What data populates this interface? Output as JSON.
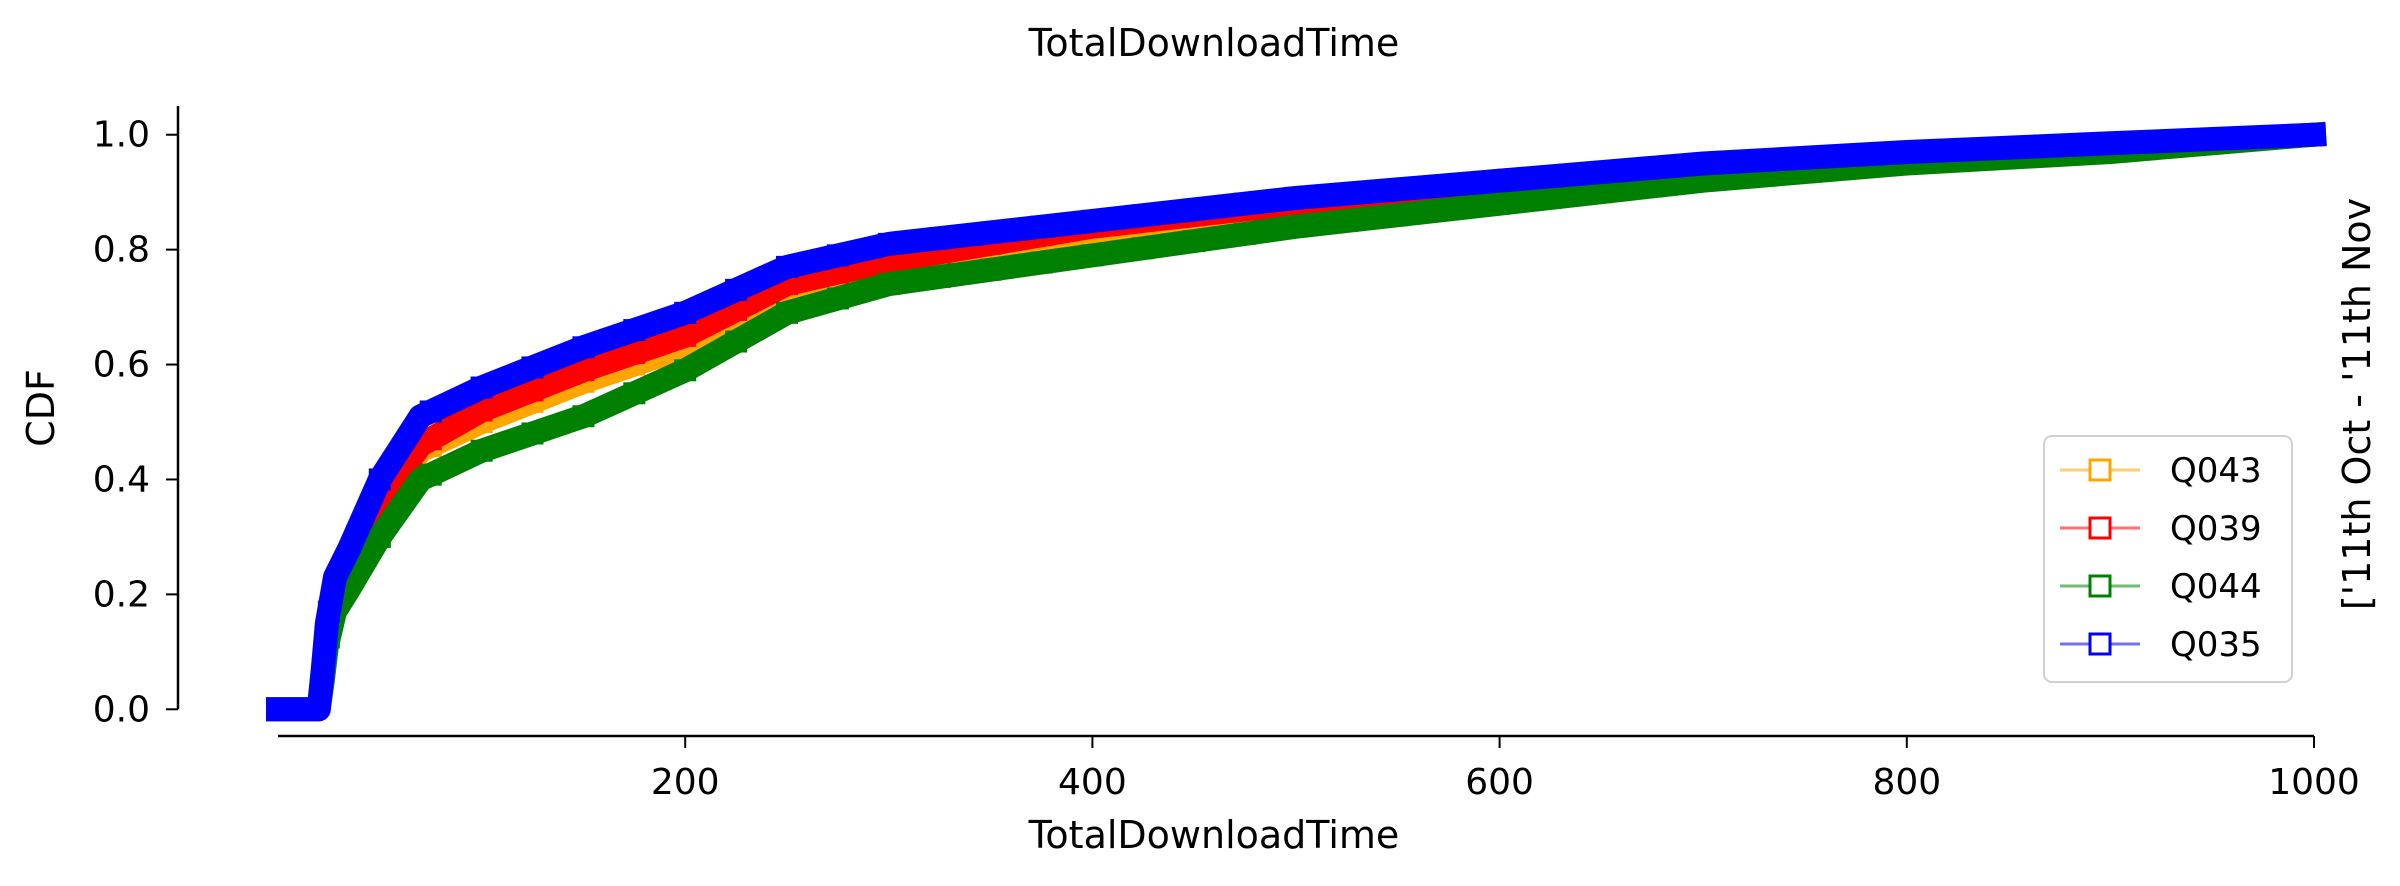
{
  "chart_data": {
    "type": "line",
    "title": "TotalDownloadTime",
    "xlabel": "TotalDownloadTime",
    "ylabel": "CDF",
    "right_label": "['11th Oct - '11th Nov",
    "xlim": [
      0,
      1000
    ],
    "ylim": [
      -0.05,
      1.05
    ],
    "xticks": [
      200,
      400,
      600,
      800,
      1000
    ],
    "yticks": [
      0.0,
      0.2,
      0.4,
      0.6,
      0.8,
      1.0
    ],
    "xtick_labels": [
      "200",
      "400",
      "600",
      "800",
      "1000"
    ],
    "ytick_labels": [
      "0.0",
      "0.2",
      "0.4",
      "0.6",
      "0.8",
      "1.0"
    ],
    "grid": false,
    "legend_position": "lower-right",
    "marker": "square",
    "series": [
      {
        "name": "Q043",
        "color": "#ffa500",
        "x": [
          0,
          20,
          22,
          24,
          28,
          35,
          50,
          70,
          100,
          150,
          200,
          250,
          300,
          400,
          500,
          600,
          700,
          800,
          900,
          1000
        ],
        "y": [
          0,
          0,
          0.05,
          0.12,
          0.2,
          0.25,
          0.35,
          0.45,
          0.5,
          0.57,
          0.63,
          0.72,
          0.77,
          0.83,
          0.87,
          0.91,
          0.94,
          0.96,
          0.98,
          1.0
        ]
      },
      {
        "name": "Q039",
        "color": "#ff0000",
        "x": [
          0,
          20,
          22,
          24,
          28,
          35,
          50,
          70,
          100,
          150,
          200,
          250,
          300,
          400,
          500,
          600,
          700,
          800,
          900,
          1000
        ],
        "y": [
          0,
          0,
          0.06,
          0.13,
          0.21,
          0.26,
          0.36,
          0.46,
          0.52,
          0.59,
          0.65,
          0.74,
          0.78,
          0.84,
          0.88,
          0.92,
          0.945,
          0.965,
          0.98,
          1.0
        ]
      },
      {
        "name": "Q044",
        "color": "#008000",
        "x": [
          0,
          20,
          22,
          24,
          28,
          35,
          50,
          70,
          100,
          150,
          200,
          250,
          300,
          400,
          500,
          600,
          700,
          800,
          900,
          1000
        ],
        "y": [
          0,
          0,
          0.05,
          0.11,
          0.17,
          0.21,
          0.3,
          0.4,
          0.45,
          0.51,
          0.59,
          0.69,
          0.74,
          0.79,
          0.84,
          0.88,
          0.92,
          0.95,
          0.97,
          1.0
        ]
      },
      {
        "name": "Q035",
        "color": "#0000ff",
        "x": [
          0,
          20,
          22,
          24,
          28,
          35,
          50,
          70,
          100,
          150,
          200,
          250,
          300,
          400,
          500,
          600,
          700,
          800,
          900,
          1000
        ],
        "y": [
          0,
          0,
          0.07,
          0.15,
          0.23,
          0.28,
          0.4,
          0.51,
          0.56,
          0.63,
          0.69,
          0.77,
          0.81,
          0.85,
          0.89,
          0.92,
          0.95,
          0.97,
          0.985,
          1.0
        ]
      }
    ]
  }
}
